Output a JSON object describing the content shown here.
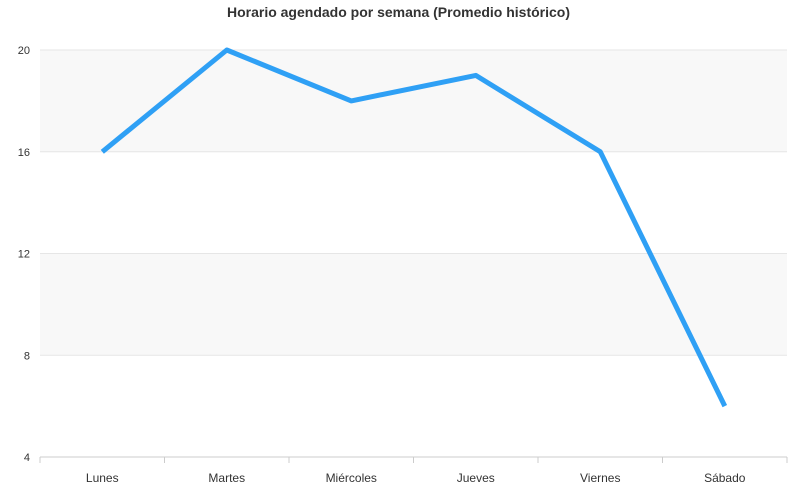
{
  "chart_data": {
    "type": "line",
    "title": "Horario agendado por semana (Promedio histórico)",
    "categories": [
      "Lunes",
      "Martes",
      "Miércoles",
      "Jueves",
      "Viernes",
      "Sábado"
    ],
    "series": [
      {
        "values": [
          16,
          20,
          18,
          19,
          16,
          6
        ]
      }
    ],
    "ylim": [
      4,
      20
    ],
    "yticks": [
      "4",
      "8",
      "12",
      "16",
      "20"
    ],
    "grid": true,
    "line_color": "#2fa0f5",
    "band_color": "#f8f8f8",
    "grid_color": "#e6e6e6",
    "axis_color": "#cccccc"
  }
}
